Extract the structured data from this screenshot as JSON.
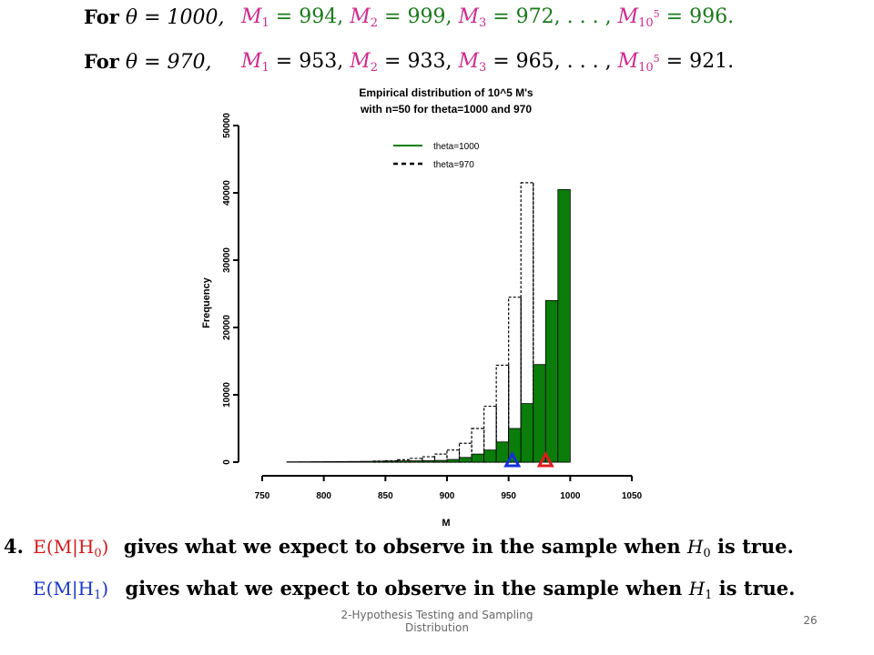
{
  "line1": {
    "prefix": "For",
    "theta_eq": "θ = 1000,",
    "m1": "M",
    "m1_eq": " = 994, ",
    "m2": "M",
    "m2_eq": " = 999, ",
    "m3": "M",
    "m3_eq": " = 972, . . . , ",
    "mn": "M",
    "mn_sub": "10",
    "mn_sup": "5",
    "mn_eq": " = 996."
  },
  "line2": {
    "prefix": "For",
    "theta_eq": "θ = 970,",
    "m1": "M",
    "m1_eq": " = 953, ",
    "m2": "M",
    "m2_eq": " = 933, ",
    "m3": "M",
    "m3_eq": " = 965, . . . , ",
    "mn": "M",
    "mn_sub": "10",
    "mn_sup": "5",
    "mn_eq": " = 921."
  },
  "statement1": {
    "number": "4.",
    "expr": "E(M|H",
    "expr_sub": "0",
    "expr_close": ")",
    "text": "gives what we expect to observe in the sample when ",
    "h": "H",
    "h_sub": "0",
    "tail": " is true."
  },
  "statement2": {
    "expr": "E(M|H",
    "expr_sub": "1",
    "expr_close": ")",
    "text": "gives what we expect to observe in the sample when ",
    "h": "H",
    "h_sub": "1",
    "tail": " is true."
  },
  "footer": {
    "text": "2-Hypothesis Testing and Sampling Distribution",
    "page": "26"
  },
  "colors": {
    "theta1000": "#0a7d0a",
    "theta970": "#000000",
    "triangle_blue": "#1530d8",
    "triangle_red": "#e01c1c"
  },
  "chart_data": {
    "type": "bar",
    "title": "Empirical distribution of 10^5 M's with n=50 for theta=1000 and 970",
    "title_line1": "Empirical distribution of 10^5 M's",
    "title_line2": "with n=50 for theta=1000 and 970",
    "xlabel": "M",
    "ylabel": "Frequency",
    "xlim": [
      750,
      1050
    ],
    "ylim": [
      0,
      50000
    ],
    "x_ticks": [
      "750",
      "800",
      "850",
      "900",
      "950",
      "1000",
      "1050"
    ],
    "y_ticks": [
      "0",
      "10000",
      "20000",
      "30000",
      "40000",
      "50000"
    ],
    "bin_width": 10,
    "legend": [
      "theta=1000",
      "theta=970"
    ],
    "legend_position": "top-right",
    "series": [
      {
        "name": "theta=1000",
        "style": "solid-fill",
        "bins": [
          770,
          780,
          790,
          800,
          810,
          820,
          830,
          840,
          850,
          860,
          870,
          880,
          890,
          900,
          910,
          920,
          930,
          940,
          950,
          960,
          970,
          980,
          990
        ],
        "values": [
          50,
          60,
          70,
          80,
          90,
          100,
          120,
          140,
          160,
          180,
          200,
          220,
          260,
          400,
          700,
          1200,
          1800,
          3000,
          5000,
          8700,
          14500,
          24000,
          40500
        ]
      },
      {
        "name": "theta=970",
        "style": "dashed-outline",
        "bins": [
          840,
          850,
          860,
          870,
          880,
          890,
          900,
          910,
          920,
          930,
          940,
          950,
          960
        ],
        "values": [
          150,
          200,
          350,
          550,
          800,
          1200,
          1800,
          2800,
          5000,
          8300,
          14400,
          24500,
          41500
        ]
      }
    ],
    "markers": [
      {
        "name": "E(M|H1)",
        "x": 953,
        "color": "blue",
        "shape": "triangle"
      },
      {
        "name": "E(M|H0)",
        "x": 980,
        "color": "red",
        "shape": "triangle"
      }
    ]
  }
}
